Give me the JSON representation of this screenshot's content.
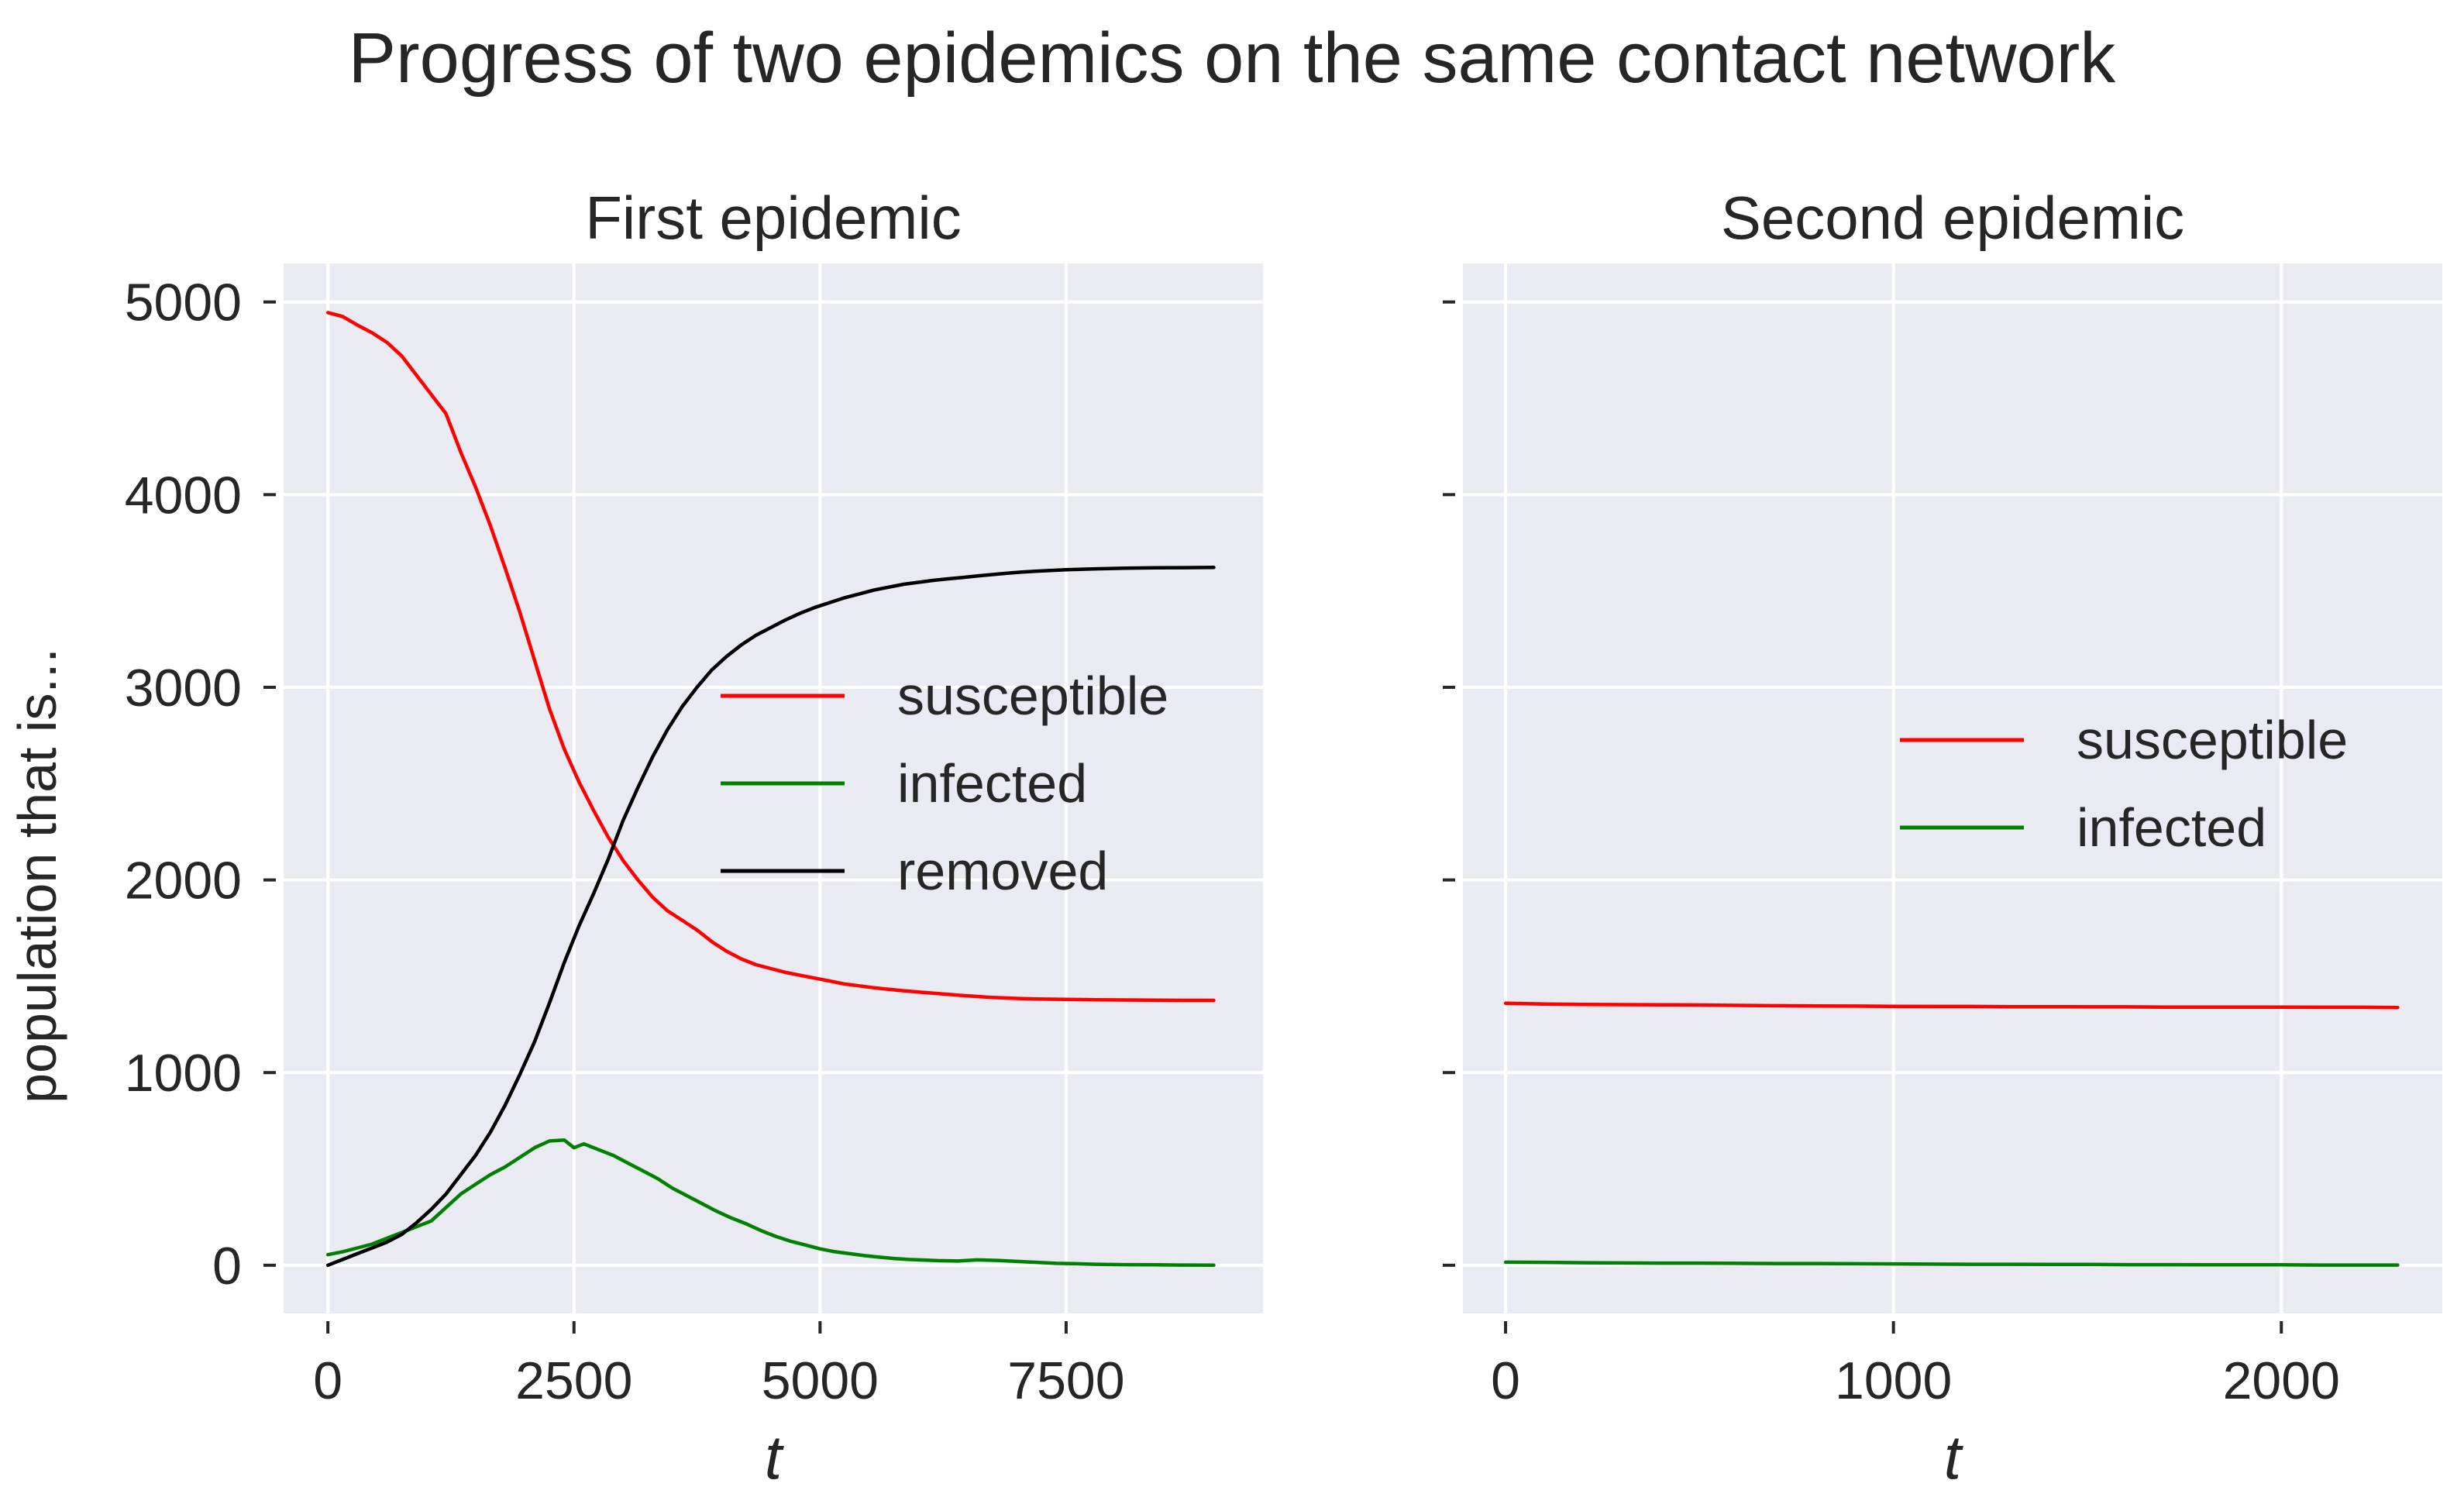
{
  "chart_data": {
    "suptitle": "Progress of two epidemics on the same contact network",
    "ylabel": "population that is...",
    "ylim": [
      -250,
      5200
    ],
    "y_ticks": [
      0,
      1000,
      2000,
      3000,
      4000,
      5000
    ],
    "grid": true,
    "background": "#eaeaf2",
    "panels": [
      {
        "type": "line",
        "title": "First epidemic",
        "xlabel": "t",
        "xlim": [
          -450,
          9500
        ],
        "x_ticks": [
          0,
          2500,
          5000,
          7500
        ],
        "legend_position": "center-right",
        "series": [
          {
            "name": "susceptible",
            "color": "#ff0000",
            "points": [
              [
                0,
                4945
              ],
              [
                150,
                4925
              ],
              [
                300,
                4880
              ],
              [
                450,
                4840
              ],
              [
                600,
                4790
              ],
              [
                750,
                4720
              ],
              [
                900,
                4620
              ],
              [
                1050,
                4520
              ],
              [
                1200,
                4420
              ],
              [
                1350,
                4220
              ],
              [
                1500,
                4040
              ],
              [
                1650,
                3840
              ],
              [
                1800,
                3620
              ],
              [
                1950,
                3390
              ],
              [
                2100,
                3140
              ],
              [
                2250,
                2890
              ],
              [
                2400,
                2680
              ],
              [
                2550,
                2510
              ],
              [
                2700,
                2360
              ],
              [
                2850,
                2220
              ],
              [
                3000,
                2100
              ],
              [
                3150,
                2000
              ],
              [
                3300,
                1910
              ],
              [
                3450,
                1840
              ],
              [
                3600,
                1790
              ],
              [
                3750,
                1740
              ],
              [
                3900,
                1680
              ],
              [
                4050,
                1630
              ],
              [
                4200,
                1590
              ],
              [
                4350,
                1560
              ],
              [
                4500,
                1540
              ],
              [
                4650,
                1520
              ],
              [
                4800,
                1505
              ],
              [
                4950,
                1490
              ],
              [
                5100,
                1475
              ],
              [
                5250,
                1460
              ],
              [
                5400,
                1450
              ],
              [
                5550,
                1440
              ],
              [
                5700,
                1432
              ],
              [
                5850,
                1425
              ],
              [
                6000,
                1418
              ],
              [
                6150,
                1412
              ],
              [
                6300,
                1406
              ],
              [
                6450,
                1400
              ],
              [
                6600,
                1395
              ],
              [
                6750,
                1390
              ],
              [
                6900,
                1387
              ],
              [
                7050,
                1384
              ],
              [
                7200,
                1382
              ],
              [
                7500,
                1380
              ],
              [
                7800,
                1378
              ],
              [
                8100,
                1377
              ],
              [
                8400,
                1376
              ],
              [
                8700,
                1375
              ],
              [
                9000,
                1375
              ]
            ]
          },
          {
            "name": "infected",
            "color": "#008000",
            "points": [
              [
                0,
                55
              ],
              [
                150,
                70
              ],
              [
                300,
                90
              ],
              [
                450,
                110
              ],
              [
                600,
                140
              ],
              [
                750,
                170
              ],
              [
                900,
                200
              ],
              [
                1050,
                230
              ],
              [
                1200,
                300
              ],
              [
                1350,
                370
              ],
              [
                1500,
                420
              ],
              [
                1650,
                470
              ],
              [
                1800,
                510
              ],
              [
                1950,
                560
              ],
              [
                2100,
                610
              ],
              [
                2250,
                645
              ],
              [
                2400,
                650
              ],
              [
                2500,
                610
              ],
              [
                2600,
                630
              ],
              [
                2750,
                600
              ],
              [
                2900,
                570
              ],
              [
                3050,
                530
              ],
              [
                3200,
                490
              ],
              [
                3350,
                450
              ],
              [
                3500,
                400
              ],
              [
                3650,
                360
              ],
              [
                3800,
                320
              ],
              [
                3950,
                280
              ],
              [
                4100,
                245
              ],
              [
                4250,
                215
              ],
              [
                4400,
                180
              ],
              [
                4550,
                150
              ],
              [
                4700,
                125
              ],
              [
                4850,
                105
              ],
              [
                5000,
                85
              ],
              [
                5150,
                70
              ],
              [
                5300,
                60
              ],
              [
                5450,
                50
              ],
              [
                5600,
                42
              ],
              [
                5750,
                35
              ],
              [
                5900,
                30
              ],
              [
                6050,
                27
              ],
              [
                6200,
                24
              ],
              [
                6400,
                22
              ],
              [
                6600,
                28
              ],
              [
                6800,
                25
              ],
              [
                7000,
                20
              ],
              [
                7200,
                15
              ],
              [
                7400,
                10
              ],
              [
                7600,
                8
              ],
              [
                7800,
                5
              ],
              [
                8100,
                3
              ],
              [
                8400,
                2
              ],
              [
                8700,
                1
              ],
              [
                9000,
                0
              ]
            ]
          },
          {
            "name": "removed",
            "color": "#000000",
            "points": [
              [
                0,
                0
              ],
              [
                150,
                30
              ],
              [
                300,
                60
              ],
              [
                450,
                90
              ],
              [
                600,
                120
              ],
              [
                750,
                160
              ],
              [
                900,
                220
              ],
              [
                1050,
                290
              ],
              [
                1200,
                370
              ],
              [
                1350,
                470
              ],
              [
                1500,
                570
              ],
              [
                1650,
                690
              ],
              [
                1800,
                830
              ],
              [
                1950,
                990
              ],
              [
                2100,
                1160
              ],
              [
                2250,
                1360
              ],
              [
                2400,
                1570
              ],
              [
                2550,
                1760
              ],
              [
                2700,
                1930
              ],
              [
                2850,
                2110
              ],
              [
                3000,
                2310
              ],
              [
                3150,
                2480
              ],
              [
                3300,
                2640
              ],
              [
                3450,
                2780
              ],
              [
                3600,
                2900
              ],
              [
                3750,
                3000
              ],
              [
                3900,
                3090
              ],
              [
                4050,
                3160
              ],
              [
                4200,
                3220
              ],
              [
                4350,
                3270
              ],
              [
                4500,
                3310
              ],
              [
                4650,
                3350
              ],
              [
                4800,
                3385
              ],
              [
                4950,
                3415
              ],
              [
                5100,
                3440
              ],
              [
                5250,
                3465
              ],
              [
                5400,
                3485
              ],
              [
                5550,
                3505
              ],
              [
                5700,
                3520
              ],
              [
                5850,
                3535
              ],
              [
                6000,
                3545
              ],
              [
                6150,
                3555
              ],
              [
                6300,
                3563
              ],
              [
                6450,
                3570
              ],
              [
                6600,
                3578
              ],
              [
                6750,
                3585
              ],
              [
                6900,
                3592
              ],
              [
                7050,
                3598
              ],
              [
                7200,
                3603
              ],
              [
                7500,
                3610
              ],
              [
                7800,
                3615
              ],
              [
                8100,
                3618
              ],
              [
                8400,
                3620
              ],
              [
                8700,
                3621
              ],
              [
                9000,
                3622
              ]
            ]
          }
        ]
      },
      {
        "type": "line",
        "title": "Second epidemic",
        "xlabel": "t",
        "xlim": [
          -110,
          2415
        ],
        "x_ticks": [
          0,
          1000,
          2000
        ],
        "legend_position": "center-right",
        "series": [
          {
            "name": "susceptible",
            "color": "#ff0000",
            "points": [
              [
                0,
                1360
              ],
              [
                100,
                1356
              ],
              [
                200,
                1354
              ],
              [
                300,
                1353
              ],
              [
                400,
                1352
              ],
              [
                500,
                1351
              ],
              [
                600,
                1349
              ],
              [
                700,
                1347
              ],
              [
                800,
                1346
              ],
              [
                900,
                1345
              ],
              [
                1000,
                1344
              ],
              [
                1100,
                1343
              ],
              [
                1200,
                1343
              ],
              [
                1300,
                1342
              ],
              [
                1400,
                1342
              ],
              [
                1500,
                1341
              ],
              [
                1600,
                1341
              ],
              [
                1700,
                1340
              ],
              [
                1800,
                1340
              ],
              [
                1900,
                1340
              ],
              [
                2000,
                1340
              ],
              [
                2100,
                1339
              ],
              [
                2200,
                1339
              ],
              [
                2300,
                1338
              ]
            ]
          },
          {
            "name": "infected",
            "color": "#008000",
            "points": [
              [
                0,
                16
              ],
              [
                100,
                15
              ],
              [
                200,
                13
              ],
              [
                300,
                12
              ],
              [
                400,
                11
              ],
              [
                500,
                11
              ],
              [
                600,
                10
              ],
              [
                700,
                9
              ],
              [
                800,
                9
              ],
              [
                900,
                8
              ],
              [
                1000,
                7
              ],
              [
                1100,
                6
              ],
              [
                1200,
                5
              ],
              [
                1300,
                5
              ],
              [
                1400,
                4
              ],
              [
                1500,
                4
              ],
              [
                1600,
                3
              ],
              [
                1700,
                3
              ],
              [
                1800,
                2
              ],
              [
                1900,
                2
              ],
              [
                2000,
                2
              ],
              [
                2100,
                1
              ],
              [
                2200,
                1
              ],
              [
                2300,
                1
              ]
            ]
          }
        ]
      }
    ]
  }
}
